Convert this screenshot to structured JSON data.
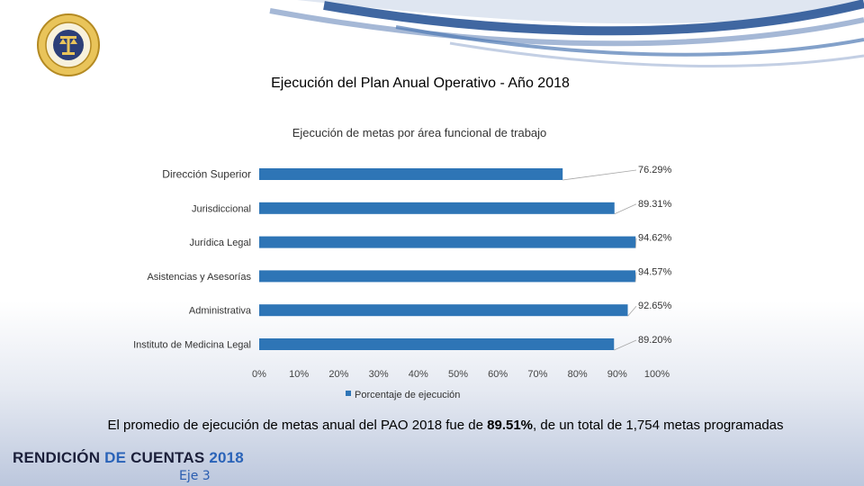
{
  "slide": {
    "main_title": "Ejecución del Plan Anual Operativo - Año 2018",
    "footer": {
      "pre": "El promedio de ejecución de metas  anual del PAO 2018 fue de ",
      "bold": "89.51%",
      "post": ", de un total de 1,754 metas programadas"
    },
    "brand": {
      "part1": "RENDICIÓN ",
      "part2": "DE ",
      "part3": "CUENTAS ",
      "year": "2018"
    },
    "eje": "Eje 3"
  },
  "colors": {
    "bar": "#2e75b6",
    "brand_dark": "#1b1f3a",
    "brand_blue": "#2a63b8",
    "swoosh": "#2b5797"
  },
  "icons": {
    "logo": "organo-judicial-seal-icon"
  },
  "chart_data": {
    "type": "bar",
    "orientation": "horizontal",
    "title": "Ejecución de metas por área funcional de trabajo",
    "categories": [
      "Dirección Superior",
      "Jurisdiccional",
      "Jurídica Legal",
      "Asistencias y Asesorías",
      "Administrativa",
      "Instituto de Medicina Legal"
    ],
    "series": [
      {
        "name": "Porcentaje de ejecución",
        "values": [
          76.29,
          89.31,
          94.62,
          94.57,
          92.65,
          89.2
        ]
      }
    ],
    "data_labels": [
      "76.29%",
      "89.31%",
      "94.62%",
      "94.57%",
      "92.65%",
      "89.20%"
    ],
    "x_ticks": [
      "0%",
      "10%",
      "20%",
      "30%",
      "40%",
      "50%",
      "60%",
      "70%",
      "80%",
      "90%",
      "100%"
    ],
    "xlim": [
      0,
      100
    ],
    "grid": false,
    "legend_position": "bottom"
  }
}
